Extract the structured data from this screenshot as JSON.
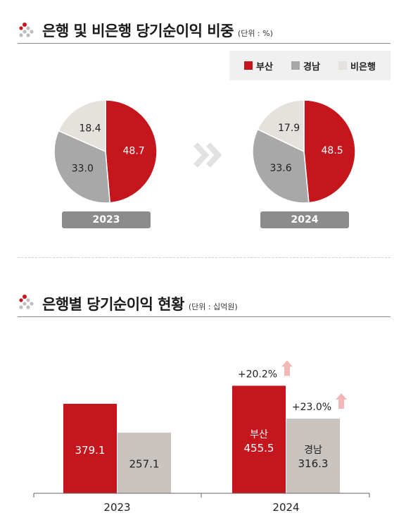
{
  "section1": {
    "title": "은행 및 비은행 당기순이익 비중",
    "unit": "(단위 : %)"
  },
  "section2": {
    "title": "은행별 당기순이익 현황",
    "unit": "(단위 : 십억원)"
  },
  "colors": {
    "busan": "#c4161c",
    "gyeongnam": "#a8a8a8",
    "nonbank": "#e5e1dc",
    "bar_gyeongnam": "#c9c4c0"
  },
  "chart_data": [
    {
      "type": "pie",
      "year": "2023",
      "series": [
        {
          "name": "부산",
          "value": 48.7,
          "label": "48.7"
        },
        {
          "name": "경남",
          "value": 33.0,
          "label": "33.0"
        },
        {
          "name": "비은행",
          "value": 18.4,
          "label": "18.4"
        }
      ]
    },
    {
      "type": "pie",
      "year": "2024",
      "series": [
        {
          "name": "부산",
          "value": 48.5,
          "label": "48.5"
        },
        {
          "name": "경남",
          "value": 33.6,
          "label": "33.6"
        },
        {
          "name": "비은행",
          "value": 17.9,
          "label": "17.9"
        }
      ]
    },
    {
      "type": "bar",
      "categories": [
        "2023",
        "2024"
      ],
      "series": [
        {
          "name": "부산",
          "values": [
            379.1,
            455.5
          ],
          "labels": [
            "379.1",
            "455.5"
          ]
        },
        {
          "name": "경남",
          "values": [
            257.1,
            316.3
          ],
          "labels": [
            "257.1",
            "316.3"
          ]
        }
      ],
      "bar_name_labels": {
        "busan": "부산",
        "gyeongnam": "경남"
      },
      "growth": {
        "busan": "+20.2%",
        "gyeongnam": "+23.0%"
      }
    }
  ],
  "legend": [
    {
      "label": "부산",
      "color": "#c4161c"
    },
    {
      "label": "경남",
      "color": "#a8a8a8"
    },
    {
      "label": "비은행",
      "color": "#e5e1dc"
    }
  ]
}
